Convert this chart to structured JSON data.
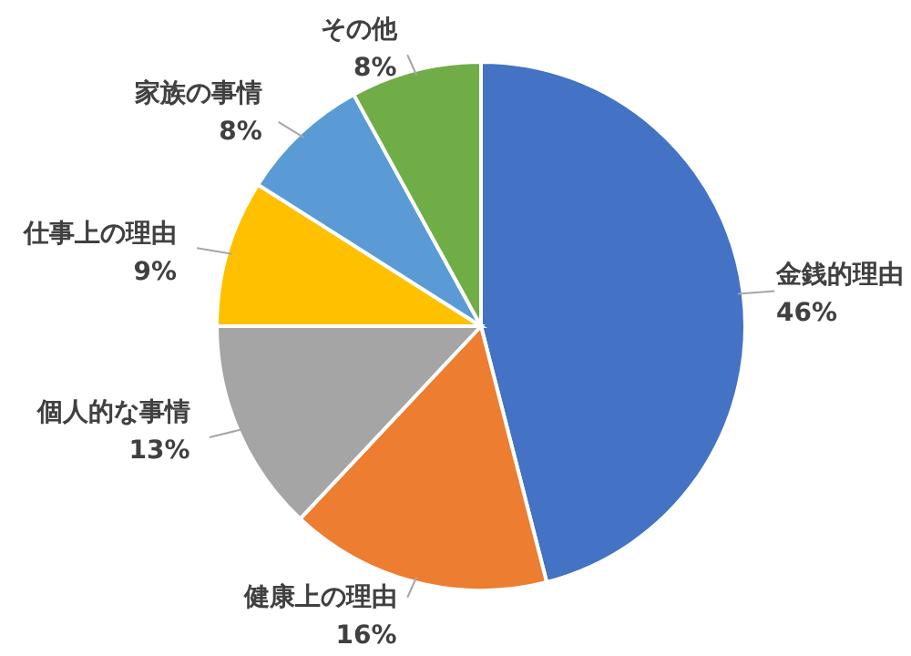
{
  "chart_data": {
    "type": "pie",
    "categories": [
      "金銭的理由",
      "健康上の理由",
      "個人的な事情",
      "仕事上の理由",
      "家族の事情",
      "その他"
    ],
    "values": [
      46,
      16,
      13,
      9,
      8,
      8
    ],
    "colors": [
      "#4472c4",
      "#ed7d31",
      "#a5a5a5",
      "#ffc000",
      "#5b9bd5",
      "#70ad47"
    ],
    "value_labels": [
      "46%",
      "16%",
      "13%",
      "9%",
      "8%",
      "8%"
    ]
  }
}
